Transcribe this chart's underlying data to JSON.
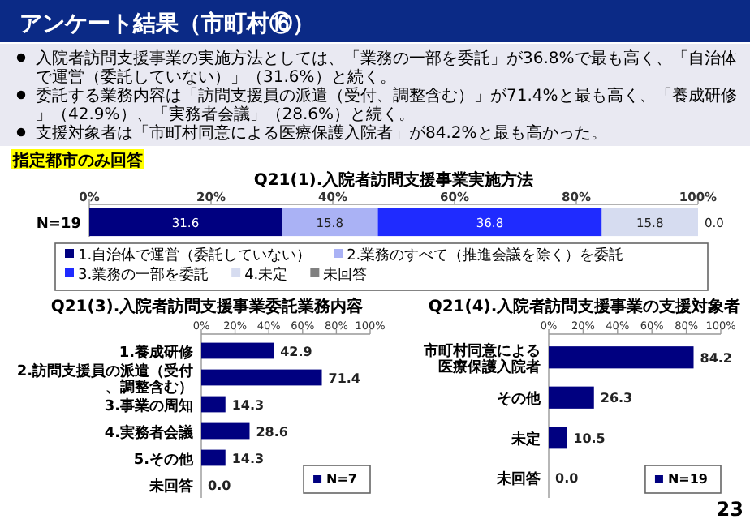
{
  "chart_data": [
    {
      "type": "bar",
      "orientation": "horizontal",
      "stacked": true,
      "title": "Q21(1).入院者訪問支援事業実施方法",
      "categories": [
        "N=19"
      ],
      "xlim": [
        0,
        100
      ],
      "xticks": [
        {
          "value": 0,
          "label": "0%"
        },
        {
          "value": 20,
          "label": "20%"
        },
        {
          "value": 40,
          "label": "40%"
        },
        {
          "value": 60,
          "label": "60%"
        },
        {
          "value": 80,
          "label": "80%"
        },
        {
          "value": 100,
          "label": "100%"
        }
      ],
      "series": [
        {
          "name": "1.自治体で運営（委託していない）",
          "color": "#000080",
          "values": [
            31.6
          ],
          "value_labels": [
            "31.6"
          ]
        },
        {
          "name": "2.業務のすべて（推進会議を除く）を委託",
          "color": "#aab2f5",
          "values": [
            15.8
          ],
          "value_labels": [
            "15.8"
          ]
        },
        {
          "name": "3.業務の一部を委託",
          "color": "#1f2bff",
          "values": [
            36.8
          ],
          "value_labels": [
            "36.8"
          ]
        },
        {
          "name": "4.未定",
          "color": "#d6dcf0",
          "values": [
            15.8
          ],
          "value_labels": [
            "15.8"
          ]
        },
        {
          "name": "未回答",
          "color": "#808080",
          "values": [
            0
          ],
          "value_labels": [
            "0.0"
          ]
        }
      ],
      "legend": "bottom",
      "annotations": [
        "アンケート結果（市町村⑯）",
        "入院者訪問支援事業の実施方法としては、「業務の一部を委託」が36.8%で最も高く、「自治体で運営（委託していない）」（31.6%）と続く。",
        "委託する業務内容は「訪問支援員の派遣（受付、調整含む）」が71.4%と最も高く、「養成研修」（42.9%）、「実務者会議」（28.6%）と続く。",
        "支援対象者は「市町村同意による医療保護入院者」が84.2%と最も高かった。",
        "指定都市のみ回答",
        "23"
      ]
    },
    {
      "type": "bar",
      "orientation": "horizontal",
      "title": "Q21(3).入院者訪問支援事業委託業務内容",
      "categories": [
        "1.養成研修",
        "2.訪問支援員の派遣（受付、調整含む）",
        "3.事業の周知",
        "4.実務者会議",
        "5.その他",
        "未回答"
      ],
      "xlim": [
        0,
        100
      ],
      "xticks": [
        {
          "value": 0,
          "label": "0%"
        },
        {
          "value": 20,
          "label": "20%"
        },
        {
          "value": 40,
          "label": "40%"
        },
        {
          "value": 60,
          "label": "60%"
        },
        {
          "value": 80,
          "label": "80%"
        },
        {
          "value": 100,
          "label": "100%"
        }
      ],
      "series": [
        {
          "name": "N=7",
          "color": "#000080",
          "values": [
            42.9,
            71.4,
            14.3,
            28.6,
            14.3,
            0
          ],
          "value_labels": [
            "42.9",
            "71.4",
            "14.3",
            "28.6",
            "14.3",
            "0.0"
          ]
        }
      ],
      "legend": "bottom right"
    },
    {
      "type": "bar",
      "orientation": "horizontal",
      "title": "Q21(4).入院者訪問支援事業の支援対象者",
      "categories": [
        "市町村同意による医療保護入院者",
        "その他",
        "未定",
        "未回答"
      ],
      "xlim": [
        0,
        100
      ],
      "xticks": [
        {
          "value": 0,
          "label": "0%"
        },
        {
          "value": 20,
          "label": "20%"
        },
        {
          "value": 40,
          "label": "40%"
        },
        {
          "value": 60,
          "label": "60%"
        },
        {
          "value": 80,
          "label": "80%"
        },
        {
          "value": 100,
          "label": "100%"
        }
      ],
      "series": [
        {
          "name": "N=19",
          "color": "#000080",
          "values": [
            84.2,
            26.3,
            10.5,
            0
          ],
          "value_labels": [
            "84.2",
            "26.3",
            "10.5",
            "0.0"
          ]
        }
      ],
      "legend": "bottom right"
    }
  ]
}
